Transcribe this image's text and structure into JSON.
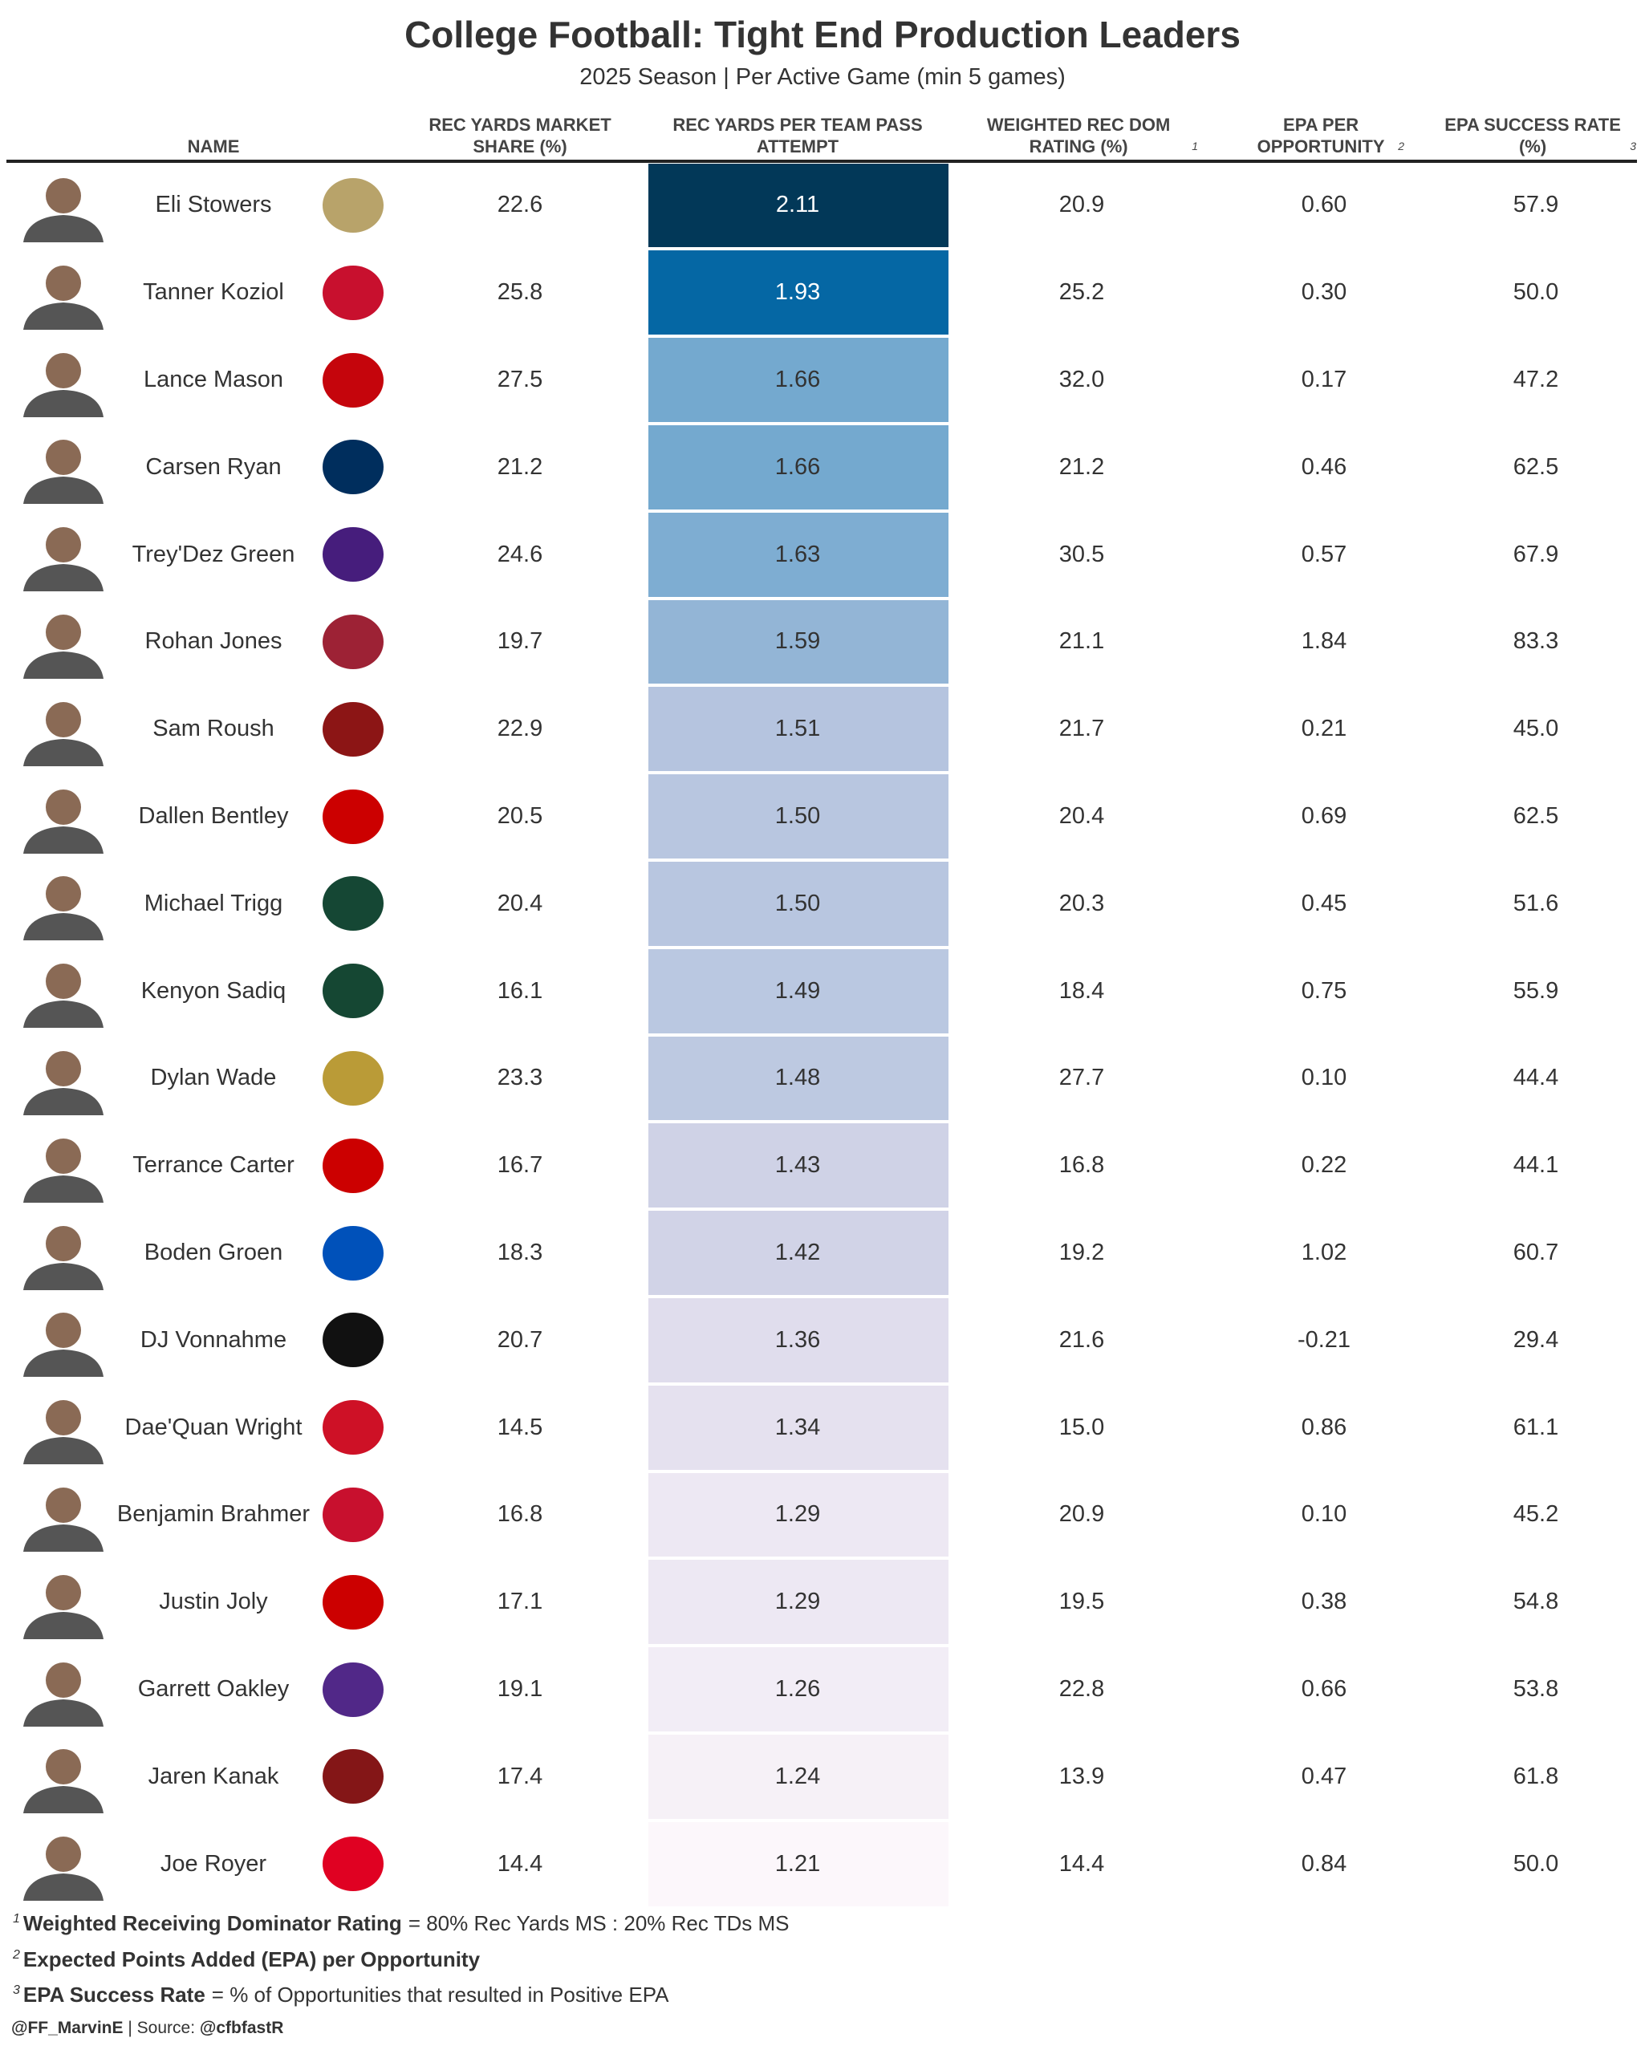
{
  "header": {
    "title": "College Football: Tight End Production Leaders",
    "subtitle": "2025 Season | Per Active Game (min 5 games)"
  },
  "table": {
    "columns": [
      {
        "label": "NAME"
      },
      {
        "label": "REC YARDS MARKET SHARE (%)"
      },
      {
        "label": "REC YARDS PER TEAM PASS ATTEMPT"
      },
      {
        "label": "WEIGHTED REC DOM RATING (%)",
        "note": "1"
      },
      {
        "label": "EPA PER OPPORTUNITY",
        "note": "2"
      },
      {
        "label": "EPA SUCCESS RATE (%)",
        "note": "3"
      }
    ],
    "rows": [
      {
        "name": "Eli Stowers",
        "values": [
          "22.6",
          "2.11",
          "20.9",
          "0.60",
          "57.9"
        ],
        "color": "#023858"
      },
      {
        "name": "Tanner Koziol",
        "values": [
          "25.8",
          "1.93",
          "25.2",
          "0.30",
          "50.0"
        ],
        "color": "#0567a4"
      },
      {
        "name": "Lance Mason",
        "values": [
          "27.5",
          "1.66",
          "32.0",
          "0.17",
          "47.2"
        ],
        "color": "#74a9cf"
      },
      {
        "name": "Carsen Ryan",
        "values": [
          "21.2",
          "1.66",
          "21.2",
          "0.46",
          "62.5"
        ],
        "color": "#74a9cf"
      },
      {
        "name": "Trey'Dez Green",
        "values": [
          "24.6",
          "1.63",
          "30.5",
          "0.57",
          "67.9"
        ],
        "color": "#7eadd2"
      },
      {
        "name": "Rohan Jones",
        "values": [
          "19.7",
          "1.59",
          "21.1",
          "1.84",
          "83.3"
        ],
        "color": "#93b5d6"
      },
      {
        "name": "Sam Roush",
        "values": [
          "22.9",
          "1.51",
          "21.7",
          "0.21",
          "45.0"
        ],
        "color": "#b5c4df"
      },
      {
        "name": "Dallen Bentley",
        "values": [
          "20.5",
          "1.50",
          "20.4",
          "0.69",
          "62.5"
        ],
        "color": "#b8c6e0"
      },
      {
        "name": "Michael Trigg",
        "values": [
          "20.4",
          "1.50",
          "20.3",
          "0.45",
          "51.6"
        ],
        "color": "#b8c6e0"
      },
      {
        "name": "Kenyon Sadiq",
        "values": [
          "16.1",
          "1.49",
          "18.4",
          "0.75",
          "55.9"
        ],
        "color": "#bac8e1"
      },
      {
        "name": "Dylan Wade",
        "values": [
          "23.3",
          "1.48",
          "27.7",
          "0.10",
          "44.4"
        ],
        "color": "#bdc9e1"
      },
      {
        "name": "Terrance Carter",
        "values": [
          "16.7",
          "1.43",
          "16.8",
          "0.22",
          "44.1"
        ],
        "color": "#cfd2e6"
      },
      {
        "name": "Boden Groen",
        "values": [
          "18.3",
          "1.42",
          "19.2",
          "1.02",
          "60.7"
        ],
        "color": "#d1d3e7"
      },
      {
        "name": "DJ Vonnahme",
        "values": [
          "20.7",
          "1.36",
          "21.6",
          "-0.21",
          "29.4"
        ],
        "color": "#e0dded"
      },
      {
        "name": "Dae'Quan Wright",
        "values": [
          "14.5",
          "1.34",
          "15.0",
          "0.86",
          "61.1"
        ],
        "color": "#e5e1ef"
      },
      {
        "name": "Benjamin Brahmer",
        "values": [
          "16.8",
          "1.29",
          "20.9",
          "0.10",
          "45.2"
        ],
        "color": "#ede8f3"
      },
      {
        "name": "Justin Joly",
        "values": [
          "17.1",
          "1.29",
          "19.5",
          "0.38",
          "54.8"
        ],
        "color": "#ede8f3"
      },
      {
        "name": "Garrett Oakley",
        "values": [
          "19.1",
          "1.26",
          "22.8",
          "0.66",
          "53.8"
        ],
        "color": "#f2edf6"
      },
      {
        "name": "Jaren Kanak",
        "values": [
          "17.4",
          "1.24",
          "13.9",
          "0.47",
          "61.8"
        ],
        "color": "#f6f1f7"
      },
      {
        "name": "Joe Royer",
        "values": [
          "14.4",
          "1.21",
          "14.4",
          "0.84",
          "50.0"
        ],
        "color": "#fcf7fb"
      }
    ]
  },
  "footnotes": [
    {
      "mark": "1",
      "term": "Weighted Receiving Dominator Rating",
      "text": "= 80% Rec Yards MS : 20% Rec TDs MS"
    },
    {
      "mark": "2",
      "term": "Expected Points Added (EPA) per Opportunity"
    },
    {
      "mark": "3",
      "term": "EPA Success Rate",
      "text": "= % of Opportunities that resulted in Positive EPA"
    }
  ],
  "credit": {
    "handle": "@FF_MarvinE",
    "separator": "|",
    "source_label": "Source:",
    "source_handle": "@cfbfastR"
  }
}
